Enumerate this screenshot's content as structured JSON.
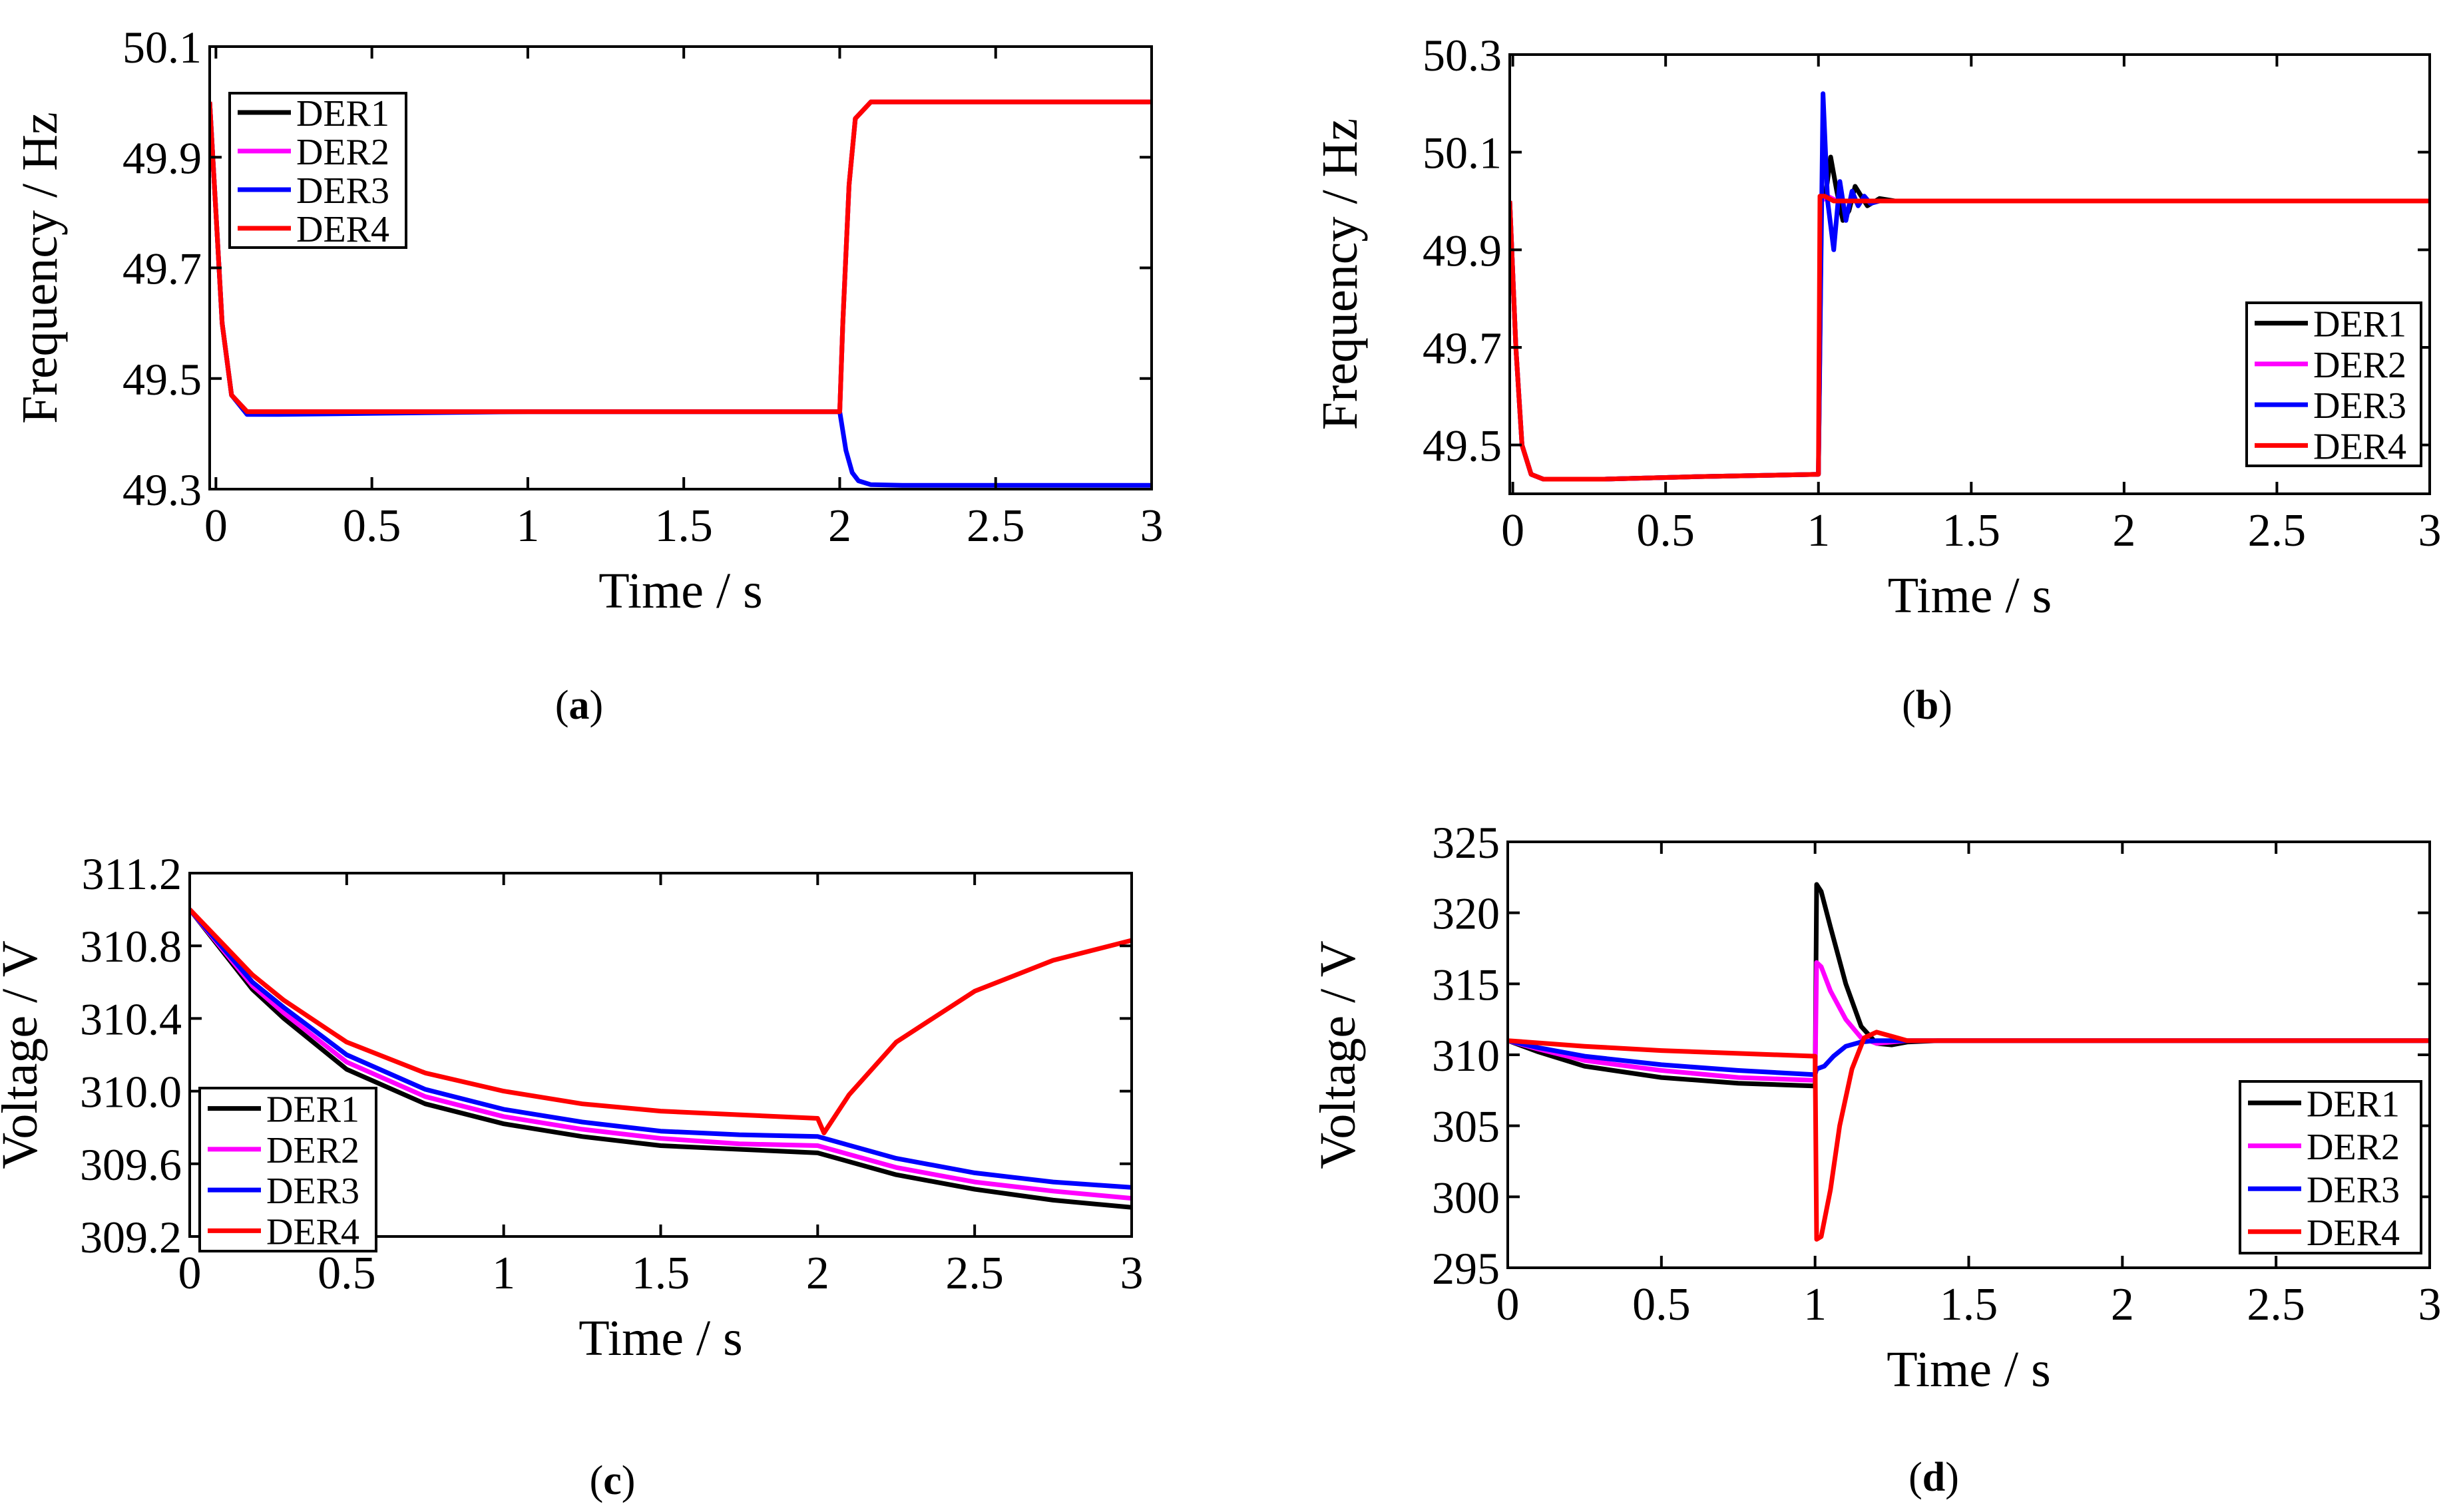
{
  "chart_data": [
    {
      "type": "line",
      "panel": "a",
      "caption_letter": "a",
      "xlabel": "Time / s",
      "ylabel": "Frequency / Hz",
      "xlim": [
        -0.02,
        3.0
      ],
      "ylim": [
        49.3,
        50.1
      ],
      "xticks": [
        0,
        0.5,
        1,
        1.5,
        2,
        2.5,
        3
      ],
      "xtick_labels": [
        "0",
        "0.5",
        "1",
        "1.5",
        "2",
        "2.5",
        "3"
      ],
      "yticks": [
        49.3,
        49.5,
        49.7,
        49.9,
        50.1
      ],
      "ytick_labels": [
        "49.3",
        "49.5",
        "49.7",
        "49.9",
        "50.1"
      ],
      "legend_position": "top-left",
      "series": [
        {
          "name": "DER1",
          "color": "#000000",
          "x": [
            -0.02,
            0.0,
            0.02,
            0.05,
            0.1,
            0.2,
            0.5,
            1.0,
            1.5,
            2.0,
            2.01,
            2.03,
            2.05,
            2.1,
            2.2,
            2.5,
            3.0
          ],
          "y": [
            50.0,
            49.8,
            49.6,
            49.47,
            49.44,
            49.44,
            49.44,
            49.44,
            49.44,
            49.44,
            49.6,
            49.85,
            49.97,
            50.0,
            50.0,
            50.0,
            50.0
          ]
        },
        {
          "name": "DER2",
          "color": "#ff00ff",
          "x": [
            -0.02,
            0.0,
            0.02,
            0.05,
            0.1,
            0.2,
            0.5,
            1.0,
            1.5,
            2.0,
            2.01,
            2.03,
            2.05,
            2.1,
            2.2,
            2.5,
            3.0
          ],
          "y": [
            50.0,
            49.8,
            49.6,
            49.47,
            49.44,
            49.44,
            49.44,
            49.44,
            49.44,
            49.44,
            49.6,
            49.85,
            49.97,
            50.0,
            50.0,
            50.0,
            50.0
          ]
        },
        {
          "name": "DER3",
          "color": "#0000ff",
          "x": [
            -0.02,
            0.0,
            0.02,
            0.05,
            0.1,
            0.2,
            0.5,
            1.0,
            1.5,
            2.0,
            2.02,
            2.04,
            2.06,
            2.1,
            2.2,
            2.5,
            3.0
          ],
          "y": [
            50.0,
            49.8,
            49.6,
            49.47,
            49.435,
            49.435,
            49.437,
            49.44,
            49.44,
            49.44,
            49.37,
            49.33,
            49.315,
            49.308,
            49.307,
            49.307,
            49.307
          ]
        },
        {
          "name": "DER4",
          "color": "#ff0000",
          "x": [
            -0.02,
            0.0,
            0.02,
            0.05,
            0.1,
            0.2,
            0.5,
            1.0,
            1.5,
            2.0,
            2.01,
            2.03,
            2.05,
            2.1,
            2.2,
            2.5,
            3.0
          ],
          "y": [
            50.0,
            49.8,
            49.6,
            49.47,
            49.44,
            49.44,
            49.44,
            49.44,
            49.44,
            49.44,
            49.6,
            49.85,
            49.97,
            50.0,
            50.0,
            50.0,
            50.0
          ]
        }
      ]
    },
    {
      "type": "line",
      "panel": "b",
      "caption_letter": "b",
      "xlabel": "Time / s",
      "ylabel": "Frequency / Hz",
      "xlim": [
        -0.01,
        3.0
      ],
      "ylim": [
        49.4,
        50.3
      ],
      "xticks": [
        0,
        0.5,
        1,
        1.5,
        2,
        2.5,
        3
      ],
      "xtick_labels": [
        "0",
        "0.5",
        "1",
        "1.5",
        "2",
        "2.5",
        "3"
      ],
      "yticks": [
        49.5,
        49.7,
        49.9,
        50.1,
        50.3
      ],
      "ytick_labels": [
        "49.5",
        "49.7",
        "49.9",
        "50.1",
        "50.3"
      ],
      "legend_position": "bottom-right",
      "series": [
        {
          "name": "DER1",
          "color": "#000000",
          "x": [
            -0.01,
            0.01,
            0.03,
            0.06,
            0.1,
            0.3,
            0.6,
            1.0,
            1.01,
            1.025,
            1.04,
            1.06,
            1.08,
            1.1,
            1.12,
            1.14,
            1.16,
            1.2,
            1.25,
            1.35,
            2.0,
            3.0
          ],
          "y": [
            50.0,
            49.7,
            49.5,
            49.44,
            49.43,
            49.43,
            49.435,
            49.44,
            50.0,
            50.02,
            50.09,
            50.02,
            49.96,
            49.98,
            50.03,
            50.01,
            49.99,
            50.005,
            50.0,
            50.0,
            50.0,
            50.0
          ]
        },
        {
          "name": "DER2",
          "color": "#ff00ff",
          "x": [
            -0.01,
            0.01,
            0.03,
            0.06,
            0.1,
            0.3,
            0.6,
            1.0,
            1.01,
            1.03,
            1.06,
            1.1,
            1.2,
            1.3,
            2.0,
            3.0
          ],
          "y": [
            50.0,
            49.7,
            49.5,
            49.44,
            49.43,
            49.43,
            49.435,
            49.44,
            50.0,
            50.01,
            50.0,
            50.0,
            50.0,
            50.0,
            50.0,
            50.0
          ]
        },
        {
          "name": "DER3",
          "color": "#0000ff",
          "x": [
            -0.01,
            0.01,
            0.03,
            0.06,
            0.1,
            0.3,
            0.6,
            1.0,
            1.005,
            1.015,
            1.03,
            1.05,
            1.07,
            1.09,
            1.11,
            1.13,
            1.15,
            1.17,
            1.2,
            1.25,
            1.35,
            2.0,
            3.0
          ],
          "y": [
            50.0,
            49.7,
            49.5,
            49.44,
            49.43,
            49.43,
            49.435,
            49.44,
            49.7,
            50.22,
            50.0,
            49.9,
            50.04,
            49.96,
            50.02,
            49.99,
            50.01,
            49.995,
            50.0,
            50.0,
            50.0,
            50.0,
            50.0
          ]
        },
        {
          "name": "DER4",
          "color": "#ff0000",
          "x": [
            -0.01,
            0.01,
            0.03,
            0.06,
            0.1,
            0.3,
            0.6,
            1.0,
            1.005,
            1.02,
            1.05,
            1.1,
            1.2,
            2.0,
            3.0
          ],
          "y": [
            50.0,
            49.7,
            49.5,
            49.44,
            49.43,
            49.43,
            49.435,
            49.44,
            50.01,
            50.01,
            50.0,
            50.0,
            50.0,
            50.0,
            50.0
          ]
        }
      ]
    },
    {
      "type": "line",
      "panel": "c",
      "caption_letter": "c",
      "xlabel": "Time / s",
      "ylabel": "Voltage / V",
      "xlim": [
        0,
        3.0
      ],
      "ylim": [
        309.2,
        311.2
      ],
      "xticks": [
        0,
        0.5,
        1,
        1.5,
        2,
        2.5,
        3
      ],
      "xtick_labels": [
        "0",
        "0.5",
        "1",
        "1.5",
        "2",
        "2.5",
        "3"
      ],
      "yticks": [
        309.2,
        309.6,
        310.0,
        310.4,
        310.8,
        311.2
      ],
      "ytick_labels": [
        "309.2",
        "309.6",
        "310.0",
        "310.4",
        "310.8",
        "311.2"
      ],
      "legend_position": "bottom-left",
      "series": [
        {
          "name": "DER1",
          "color": "#000000",
          "x": [
            0,
            0.1,
            0.2,
            0.3,
            0.5,
            0.75,
            1.0,
            1.25,
            1.5,
            1.75,
            2.0,
            2.25,
            2.5,
            2.75,
            3.0
          ],
          "y": [
            311.0,
            310.78,
            310.56,
            310.4,
            310.12,
            309.93,
            309.82,
            309.75,
            309.7,
            309.68,
            309.66,
            309.54,
            309.46,
            309.4,
            309.36
          ]
        },
        {
          "name": "DER2",
          "color": "#ff00ff",
          "x": [
            0,
            0.1,
            0.2,
            0.3,
            0.5,
            0.75,
            1.0,
            1.25,
            1.5,
            1.75,
            2.0,
            2.25,
            2.5,
            2.75,
            3.0
          ],
          "y": [
            311.0,
            310.79,
            310.58,
            310.43,
            310.16,
            309.97,
            309.86,
            309.79,
            309.74,
            309.71,
            309.7,
            309.58,
            309.5,
            309.45,
            309.41
          ]
        },
        {
          "name": "DER3",
          "color": "#0000ff",
          "x": [
            0,
            0.1,
            0.2,
            0.3,
            0.5,
            0.75,
            1.0,
            1.25,
            1.5,
            1.75,
            2.0,
            2.25,
            2.5,
            2.75,
            3.0
          ],
          "y": [
            311.0,
            310.8,
            310.6,
            310.46,
            310.2,
            310.01,
            309.9,
            309.83,
            309.78,
            309.76,
            309.75,
            309.63,
            309.55,
            309.5,
            309.47
          ]
        },
        {
          "name": "DER4",
          "color": "#ff0000",
          "x": [
            0,
            0.1,
            0.2,
            0.3,
            0.5,
            0.75,
            1.0,
            1.25,
            1.5,
            1.75,
            2.0,
            2.02,
            2.1,
            2.25,
            2.5,
            2.75,
            3.0
          ],
          "y": [
            311.0,
            310.82,
            310.64,
            310.5,
            310.27,
            310.1,
            310.0,
            309.93,
            309.89,
            309.87,
            309.85,
            309.77,
            309.98,
            310.27,
            310.55,
            310.72,
            310.83
          ]
        }
      ]
    },
    {
      "type": "line",
      "panel": "d",
      "caption_letter": "d",
      "xlabel": "Time / s",
      "ylabel": "Voltage / V",
      "xlim": [
        0,
        3.0
      ],
      "ylim": [
        295,
        325
      ],
      "xticks": [
        0,
        0.5,
        1,
        1.5,
        2,
        2.5,
        3
      ],
      "xtick_labels": [
        "0",
        "0.5",
        "1",
        "1.5",
        "2",
        "2.5",
        "3"
      ],
      "yticks": [
        295,
        300,
        305,
        310,
        315,
        320,
        325
      ],
      "ytick_labels": [
        "295",
        "300",
        "305",
        "310",
        "315",
        "320",
        "325"
      ],
      "legend_position": "bottom-right",
      "series": [
        {
          "name": "DER1",
          "color": "#000000",
          "x": [
            0,
            0.1,
            0.25,
            0.5,
            0.75,
            1.0,
            1.005,
            1.02,
            1.05,
            1.1,
            1.15,
            1.2,
            1.25,
            1.3,
            1.4,
            2.0,
            3.0
          ],
          "y": [
            311.0,
            310.2,
            309.2,
            308.4,
            308.0,
            307.8,
            322.0,
            321.5,
            319.0,
            315.0,
            312.0,
            310.8,
            310.7,
            310.9,
            311.0,
            311.0,
            311.0
          ]
        },
        {
          "name": "DER2",
          "color": "#ff00ff",
          "x": [
            0,
            0.1,
            0.25,
            0.5,
            0.75,
            1.0,
            1.005,
            1.02,
            1.05,
            1.1,
            1.15,
            1.2,
            1.25,
            1.3,
            1.4,
            2.0,
            3.0
          ],
          "y": [
            311.0,
            310.4,
            309.6,
            308.9,
            308.4,
            308.2,
            316.5,
            316.2,
            314.5,
            312.5,
            311.2,
            310.8,
            310.9,
            311.0,
            311.0,
            311.0,
            311.0
          ]
        },
        {
          "name": "DER3",
          "color": "#0000ff",
          "x": [
            0,
            0.1,
            0.25,
            0.5,
            0.75,
            1.0,
            1.005,
            1.03,
            1.06,
            1.1,
            1.15,
            1.2,
            1.3,
            1.4,
            2.0,
            3.0
          ],
          "y": [
            311.0,
            310.5,
            309.9,
            309.3,
            308.9,
            308.6,
            309.0,
            309.2,
            309.9,
            310.6,
            310.9,
            311.0,
            311.0,
            311.0,
            311.0,
            311.0
          ]
        },
        {
          "name": "DER4",
          "color": "#ff0000",
          "x": [
            0,
            0.25,
            0.5,
            0.75,
            1.0,
            1.005,
            1.02,
            1.05,
            1.08,
            1.12,
            1.16,
            1.2,
            1.25,
            1.3,
            1.4,
            2.0,
            3.0
          ],
          "y": [
            311.0,
            310.6,
            310.3,
            310.1,
            309.9,
            297.0,
            297.2,
            300.5,
            305.0,
            309.0,
            311.2,
            311.6,
            311.3,
            311.0,
            311.0,
            311.0,
            311.0
          ]
        }
      ]
    }
  ]
}
